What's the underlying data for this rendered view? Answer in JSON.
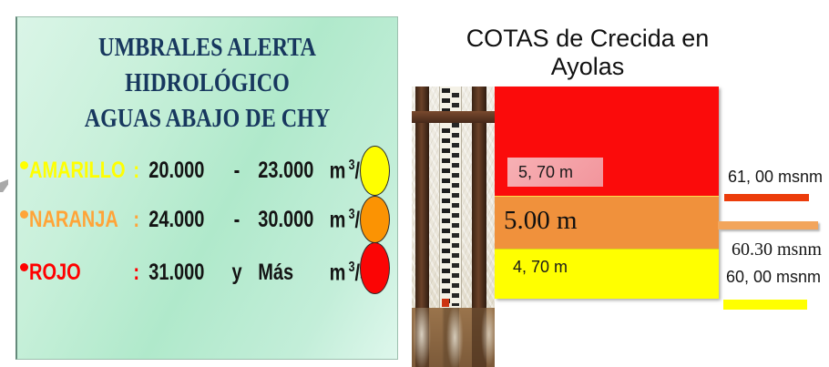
{
  "left_panel": {
    "title_line1": "UMBRALES ALERTA HIDROLÓGICO",
    "title_line2": "AGUAS ABAJO DE CHY",
    "items": [
      {
        "label": "AMARILLO",
        "colon": ":",
        "min": "20.000",
        "separator": "-",
        "max": "23.000",
        "unit_base": "m",
        "unit_exp": "3",
        "unit_tail": "/s",
        "color": "#FFFF00"
      },
      {
        "label": "NARANJA",
        "colon": ":",
        "min": "24.000",
        "separator": "-",
        "max": "30.000",
        "unit_base": "m",
        "unit_exp": "3",
        "unit_tail": "/s",
        "color": "#FFA438"
      },
      {
        "label": "ROJO",
        "colon": ":",
        "min": "31.000",
        "separator": "y",
        "max": "Más",
        "unit_base": "m",
        "unit_exp": "3",
        "unit_tail": "/s",
        "color": "#FF0000"
      }
    ],
    "lights": [
      {
        "name": "yellow",
        "color": "#FFFF00"
      },
      {
        "name": "orange",
        "color": "#FB9303"
      },
      {
        "name": "red",
        "color": "#FB0505"
      }
    ]
  },
  "right_panel": {
    "title": "COTAS de Crecida en Ayolas",
    "bands": [
      {
        "name": "red",
        "depth_label": "5, 70 m",
        "color": "#FB0B0B",
        "label_bg": "#F59CA2"
      },
      {
        "name": "orange",
        "depth_label": "5.00 m",
        "color": "#F0913C"
      },
      {
        "name": "yellow",
        "depth_label": "4, 70 m",
        "color": "#FFFF00"
      }
    ],
    "elevations": [
      {
        "text": "61, 00 msnm",
        "bar_color": "#EC3C0B"
      },
      {
        "text": "60.30 msnm",
        "bar_color": "#F2A55C"
      },
      {
        "text": "60, 00 msnm",
        "bar_color": "#FFFF00"
      }
    ]
  }
}
